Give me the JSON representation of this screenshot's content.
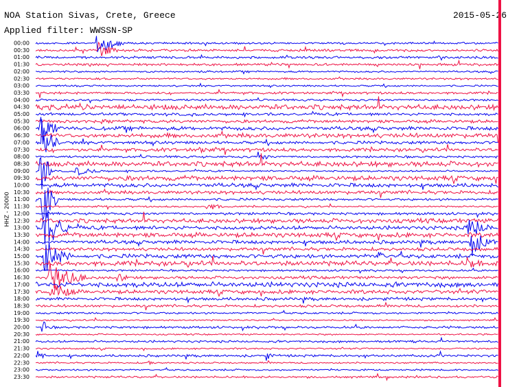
{
  "header": {
    "title": "NOA Station Sivas, Crete, Greece",
    "date": "2015-05-26",
    "filter": "Applied filter: WWSSN-SP"
  },
  "axis_label": "HHZ - 20000",
  "time_labels": [
    "00:00",
    "00:30",
    "01:00",
    "01:30",
    "02:00",
    "02:30",
    "03:00",
    "03:30",
    "04:00",
    "04:30",
    "05:00",
    "05:30",
    "06:00",
    "06:30",
    "07:00",
    "07:30",
    "08:00",
    "08:30",
    "09:00",
    "09:30",
    "10:00",
    "10:30",
    "11:00",
    "11:30",
    "12:00",
    "12:30",
    "13:00",
    "13:30",
    "14:00",
    "14:30",
    "15:00",
    "15:30",
    "16:00",
    "16:30",
    "17:00",
    "17:30",
    "18:00",
    "18:30",
    "19:00",
    "19:30",
    "20:00",
    "20:30",
    "21:00",
    "21:30",
    "22:00",
    "22:30",
    "23:00",
    "23:30"
  ]
}
